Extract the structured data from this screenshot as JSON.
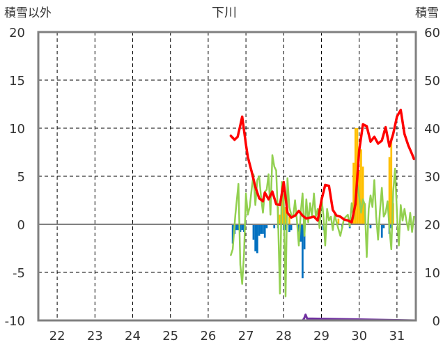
{
  "chart_data": {
    "type": "line",
    "title": "下川",
    "y_left_label": "積雪以外",
    "y_right_label": "積雪",
    "y_left_ticks": [
      "20",
      "15",
      "10",
      "5",
      "0",
      "-5",
      "-10"
    ],
    "y_right_ticks": [
      "60",
      "50",
      "40",
      "30",
      "20",
      "10",
      "0"
    ],
    "x_ticks": [
      "22",
      "23",
      "24",
      "25",
      "26",
      "27",
      "28",
      "29",
      "30",
      "31"
    ],
    "y_left_range": [
      -10,
      20
    ],
    "y_right_range": [
      0,
      60
    ],
    "x_range": [
      21.5,
      31.5
    ],
    "grid": true,
    "colors": {
      "snow_depth": "#ff0000",
      "temperature": "#92d050",
      "precip_positive": "#ffc000",
      "precip_negative": "#0070c0",
      "purple": "#7030a0",
      "axis": "#808080",
      "grid": "#000000"
    },
    "series": [
      {
        "key": "snow_depth",
        "axis": "right",
        "x": [
          26.6,
          26.7,
          26.78,
          26.85,
          26.9,
          27.0,
          27.05,
          27.15,
          27.25,
          27.35,
          27.45,
          27.5,
          27.6,
          27.7,
          27.8,
          27.9,
          28.0,
          28.1,
          28.2,
          28.3,
          28.4,
          28.5,
          28.6,
          28.7,
          28.8,
          28.9,
          29.0,
          29.1,
          29.2,
          29.3,
          29.4,
          29.5,
          29.6,
          29.7,
          29.8,
          29.9,
          30.0,
          30.1,
          30.2,
          30.3,
          30.4,
          30.5,
          30.6,
          30.7,
          30.8,
          30.9,
          31.0,
          31.1,
          31.2,
          31.3,
          31.4,
          31.45
        ],
        "values": [
          38.4,
          37.6,
          38.2,
          40.6,
          42.4,
          36.6,
          34.0,
          31.0,
          27.8,
          25.4,
          24.8,
          26.6,
          25.2,
          26.8,
          24.2,
          24.0,
          28.8,
          22.4,
          21.4,
          21.8,
          22.8,
          21.8,
          21.2,
          21.4,
          21.6,
          20.8,
          25.0,
          28.2,
          28.0,
          23.0,
          21.8,
          21.6,
          21.0,
          20.8,
          20.4,
          24.2,
          35.4,
          40.8,
          40.4,
          37.2,
          38.2,
          36.8,
          37.4,
          40.2,
          36.2,
          38.8,
          42.4,
          43.8,
          38.8,
          36.4,
          34.6,
          33.6
        ]
      },
      {
        "key": "temperature",
        "axis": "left",
        "x": [
          26.6,
          26.65,
          26.72,
          26.8,
          26.85,
          26.9,
          26.95,
          27.0,
          27.05,
          27.1,
          27.15,
          27.2,
          27.25,
          27.3,
          27.35,
          27.4,
          27.45,
          27.5,
          27.55,
          27.6,
          27.65,
          27.7,
          27.75,
          27.8,
          27.85,
          27.9,
          27.95,
          28.0,
          28.05,
          28.1,
          28.15,
          28.2,
          28.25,
          28.3,
          28.35,
          28.4,
          28.45,
          28.5,
          28.55,
          28.6,
          28.65,
          28.7,
          28.75,
          28.8,
          28.85,
          28.9,
          28.95,
          29.0,
          29.05,
          29.1,
          29.15,
          29.2,
          29.25,
          29.3,
          29.35,
          29.4,
          29.5,
          29.6,
          29.7,
          29.75,
          29.8,
          29.85,
          29.9,
          29.95,
          30.0,
          30.05,
          30.1,
          30.15,
          30.2,
          30.25,
          30.3,
          30.35,
          30.4,
          30.45,
          30.5,
          30.55,
          30.6,
          30.65,
          30.7,
          30.75,
          30.8,
          30.85,
          30.9,
          30.95,
          31.0,
          31.05,
          31.1,
          31.15,
          31.2,
          31.25,
          31.3,
          31.35,
          31.4,
          31.45
        ],
        "values": [
          -3.2,
          -2.6,
          1.0,
          4.2,
          -4.2,
          -6.2,
          -3.0,
          3.2,
          1.0,
          1.8,
          3.6,
          5.2,
          2.0,
          4.6,
          5.0,
          2.8,
          1.2,
          3.4,
          3.6,
          5.2,
          1.0,
          7.2,
          6.0,
          5.6,
          0.6,
          -7.2,
          4.4,
          2.2,
          -7.5,
          4.8,
          1.8,
          1.0,
          0.8,
          2.5,
          0.4,
          -2.2,
          1.2,
          3.2,
          -1.2,
          2.6,
          0.2,
          2.2,
          0.8,
          3.2,
          0.8,
          1.6,
          -0.4,
          2.8,
          1.0,
          -2.2,
          1.6,
          0.4,
          0.8,
          -0.6,
          1.0,
          0.2,
          -1.2,
          0.6,
          1.0,
          -0.2,
          2.2,
          0.6,
          3.0,
          4.2,
          2.8,
          1.2,
          2.6,
          2.0,
          -3.4,
          1.6,
          3.0,
          1.8,
          4.6,
          0.8,
          -1.6,
          1.4,
          3.8,
          0.8,
          1.2,
          2.4,
          -0.4,
          -2.6,
          3.4,
          5.8,
          1.2,
          -2.2,
          2.0,
          0.4,
          1.6,
          0.4,
          -0.6,
          1.2,
          -0.8,
          0.8
        ]
      },
      {
        "key": "precip_positive",
        "axis": "left",
        "type": "bar",
        "x": [
          27.85,
          27.9,
          27.95,
          28.0,
          28.05,
          28.15,
          29.45,
          29.85,
          29.9,
          29.95,
          30.0,
          30.05,
          30.1,
          30.15,
          30.8,
          30.85,
          30.9
        ],
        "values": [
          1.8,
          1.0,
          4.0,
          3.2,
          1.8,
          0.8,
          0.6,
          6.4,
          10.0,
          10.0,
          5.6,
          7.8,
          6.0,
          2.2,
          7.0,
          9.0,
          2.2
        ]
      },
      {
        "key": "precip_negative",
        "axis": "left",
        "type": "bar",
        "x": [
          26.65,
          26.7,
          26.75,
          26.8,
          26.85,
          26.9,
          26.95,
          27.2,
          27.25,
          27.3,
          27.35,
          27.4,
          27.45,
          27.5,
          27.55,
          27.75,
          27.85,
          28.0,
          28.05,
          28.15,
          28.2,
          28.4,
          28.45,
          28.5,
          28.55,
          29.05,
          29.55,
          29.75,
          30.3,
          30.6,
          30.65,
          30.8,
          30.85
        ],
        "values": [
          -2.0,
          -1.0,
          -0.6,
          -0.6,
          -0.8,
          -0.6,
          -0.8,
          -1.6,
          -2.8,
          -3.0,
          -1.2,
          -1.0,
          -1.0,
          -1.4,
          -0.4,
          -0.4,
          -0.4,
          -0.6,
          -0.6,
          -0.8,
          -0.6,
          -0.8,
          -1.8,
          -5.6,
          -2.6,
          -0.6,
          -0.4,
          -0.4,
          -0.4,
          -1.4,
          -0.4,
          -1.0,
          -0.4
        ]
      },
      {
        "key": "purple",
        "axis": "left",
        "x": [
          26.6,
          28.5,
          28.54,
          28.58,
          28.62,
          31.5
        ],
        "values": [
          -10,
          -10,
          -9.8,
          -9.4,
          -9.8,
          -10
        ]
      }
    ]
  }
}
